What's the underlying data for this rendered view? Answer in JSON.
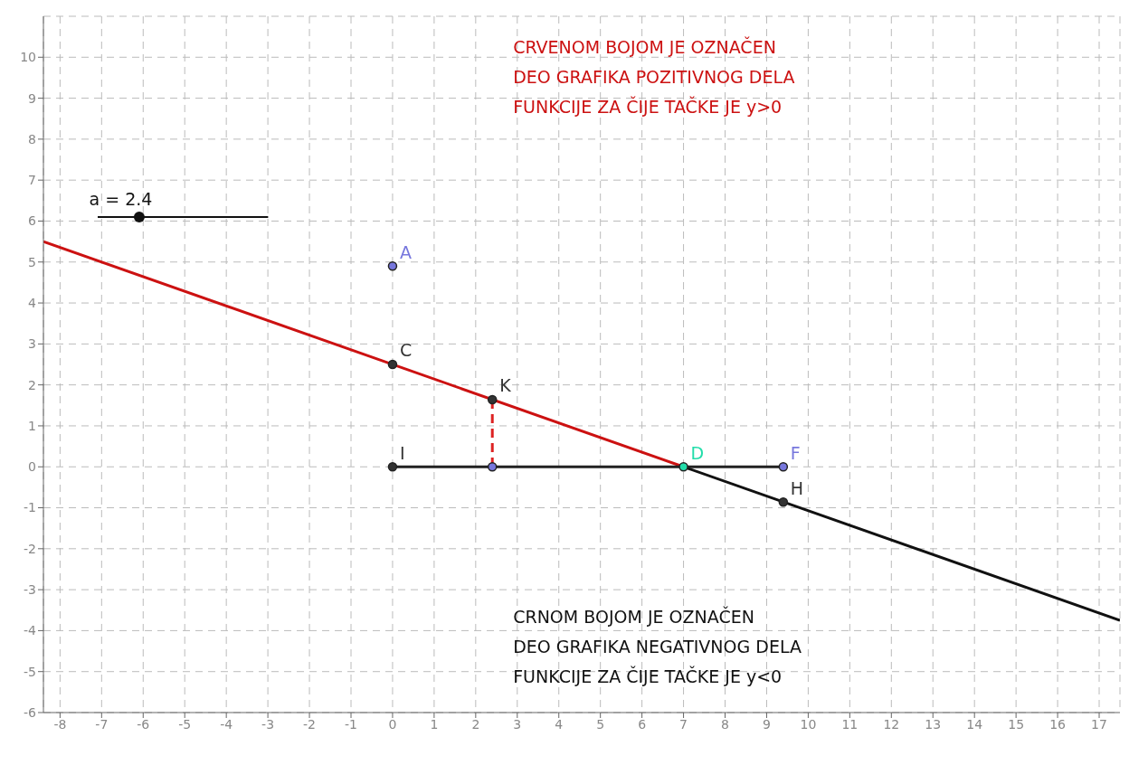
{
  "chart_data": {
    "type": "line",
    "annotations": [
      "CRVENOM BOJOM JE OZNAČEN\nDEO GRAFIKA POZITIVNOG DELA\nFUNKCIJE ZA ČIJE TAČKE JE y>0",
      "CRNOM BOJOM JE OZNAČEN\nDEO GRAFIKA NEGATIVNOG DELA\nFUNKCIJE ZA ČIJE TAČKE JE y<0",
      "a = 2.4"
    ],
    "series": [
      {
        "color": "#cc1111",
        "x": [
          -8.4,
          7
        ],
        "values": [
          5.5,
          0
        ],
        "marker": "none"
      },
      {
        "color": "#111111",
        "x": [
          7,
          17.5
        ],
        "values": [
          0,
          -3.75
        ],
        "marker": "none"
      },
      {
        "color": "#222222",
        "x": [
          0,
          9.4
        ],
        "values": [
          0,
          0
        ],
        "marker": "none"
      },
      {
        "color": "#dd2222",
        "x": [
          2.4,
          2.4
        ],
        "values": [
          1.64,
          0
        ],
        "marker": "none",
        "line_style": "dashed"
      },
      {
        "type": "scatter",
        "name": "A",
        "color": "#7777dd",
        "x": [
          0
        ],
        "values": [
          4.9
        ],
        "marker": "circle"
      },
      {
        "type": "scatter",
        "name": "C",
        "color": "#333333",
        "x": [
          0
        ],
        "values": [
          2.5
        ],
        "marker": "circle"
      },
      {
        "type": "scatter",
        "name": "K",
        "color": "#333333",
        "x": [
          2.4
        ],
        "values": [
          1.64
        ],
        "marker": "circle"
      },
      {
        "type": "scatter",
        "name": "I",
        "color": "#333333",
        "x": [
          0
        ],
        "values": [
          0
        ],
        "marker": "circle"
      },
      {
        "type": "scatter",
        "color": "#7777dd",
        "x": [
          2.4
        ],
        "values": [
          0
        ],
        "marker": "circle"
      },
      {
        "type": "scatter",
        "name": "D",
        "color": "#22ddaa",
        "x": [
          7
        ],
        "values": [
          0
        ],
        "marker": "circle"
      },
      {
        "type": "scatter",
        "name": "F",
        "color": "#7777dd",
        "x": [
          9.4
        ],
        "values": [
          0
        ],
        "marker": "circle"
      },
      {
        "type": "scatter",
        "name": "H",
        "color": "#333333",
        "x": [
          9.4
        ],
        "values": [
          -0.86
        ],
        "marker": "circle"
      }
    ],
    "xlim": [
      -8.4,
      17.5
    ],
    "xticks": [
      -8,
      -7,
      -6,
      -5,
      -4,
      -3,
      -2,
      -1,
      0,
      1,
      2,
      3,
      4,
      5,
      6,
      7,
      8,
      9,
      10,
      11,
      12,
      13,
      14,
      15,
      16,
      17
    ],
    "ylim": [
      -6,
      11
    ],
    "yticks": [
      -6,
      -5,
      -4,
      -3,
      -2,
      -1,
      0,
      1,
      2,
      3,
      4,
      5,
      6,
      7,
      8,
      9,
      10
    ],
    "grid": true,
    "line_style": "solid"
  }
}
